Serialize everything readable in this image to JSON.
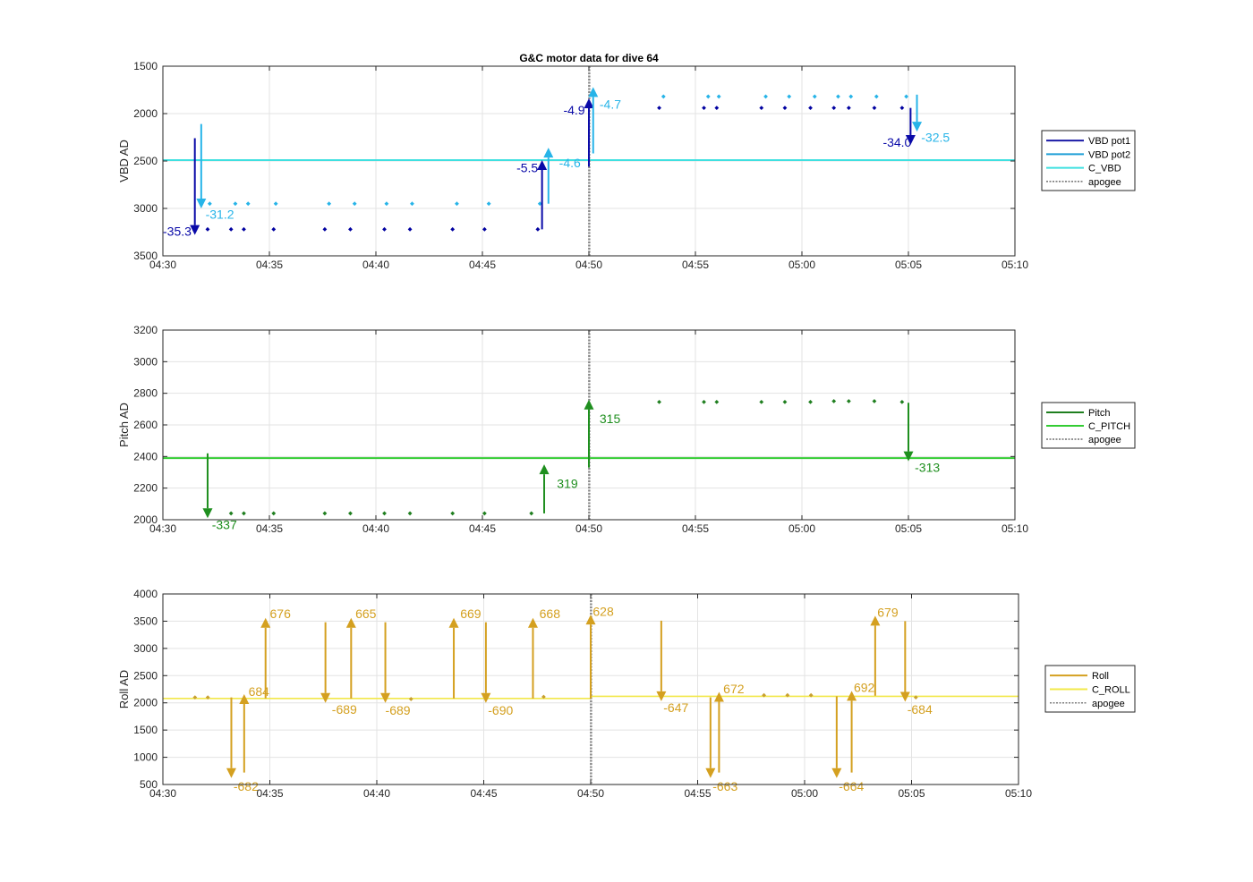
{
  "figure": {
    "title": "G&C motor data for dive 64"
  },
  "chart_data": [
    {
      "type": "scatter",
      "ylabel": "VBD AD",
      "y_reversed": true,
      "ylim": [
        1500,
        3500
      ],
      "yticks": [
        1500,
        2000,
        2500,
        3000,
        3500
      ],
      "ytick_labels": [
        "1500",
        "2000",
        "2500",
        "3000",
        "3500"
      ],
      "xlim_min": [
        270,
        310
      ],
      "xticks_min": [
        270,
        275,
        280,
        285,
        290,
        295,
        300,
        305,
        310
      ],
      "xtick_labels": [
        "04:30",
        "04:35",
        "04:40",
        "04:45",
        "04:50",
        "04:55",
        "05:00",
        "05:05",
        "05:10"
      ],
      "grid": true,
      "legend": {
        "placement": "right",
        "entries": [
          {
            "name": "VBD pot1",
            "color": "#1a1aa6",
            "style": "solid"
          },
          {
            "name": "VBD pot2",
            "color": "#1f9fd6",
            "style": "solid"
          },
          {
            "name": "C_VBD",
            "color": "#3fe0e0",
            "style": "solid"
          },
          {
            "name": "apogee",
            "color": "#555555",
            "style": "dashed"
          }
        ]
      },
      "hlines": [
        {
          "name": "C_VBD",
          "color": "#3fe0e0",
          "y": 2490
        }
      ],
      "apogee_x": 290,
      "points": [
        {
          "series": "VBD pot1",
          "color": "#0000a0",
          "x": [
            272.1,
            273.2,
            273.8,
            275.2,
            277.6,
            278.8,
            280.4,
            281.6,
            283.6,
            285.1,
            287.6,
            293.3,
            295.4,
            296.0,
            298.1,
            299.2,
            300.4,
            301.5,
            302.2,
            303.4,
            304.7
          ],
          "y": [
            3220,
            3220,
            3220,
            3220,
            3220,
            3220,
            3220,
            3220,
            3220,
            3220,
            3220,
            1940,
            1940,
            1940,
            1940,
            1940,
            1940,
            1940,
            1940,
            1940,
            1940
          ]
        },
        {
          "series": "VBD pot2",
          "color": "#27b4e8",
          "x": [
            272.2,
            273.4,
            274.0,
            275.3,
            277.8,
            279.0,
            280.5,
            281.7,
            283.8,
            285.3,
            287.7,
            293.5,
            295.6,
            296.1,
            298.3,
            299.4,
            300.6,
            301.7,
            302.3,
            303.5,
            304.9
          ],
          "y": [
            2950,
            2950,
            2950,
            2950,
            2950,
            2950,
            2950,
            2950,
            2950,
            2950,
            2950,
            1820,
            1820,
            1820,
            1820,
            1820,
            1820,
            1820,
            1820,
            1820,
            1820
          ]
        }
      ],
      "arrows": [
        {
          "color": "#0a0aa8",
          "x": 271.5,
          "y0": 2260,
          "y1": 3280,
          "label": "-35.3",
          "label_x": 270.0,
          "label_y": 3240
        },
        {
          "color": "#27b4e8",
          "x": 271.8,
          "y0": 2110,
          "y1": 3000,
          "label": "-31.2",
          "label_x": 272.0,
          "label_y": 3060
        },
        {
          "color": "#0a0aa8",
          "x": 287.8,
          "y0": 3220,
          "y1": 2490,
          "label": "-5.5",
          "label_x": 286.6,
          "label_y": 2570
        },
        {
          "color": "#27b4e8",
          "x": 288.1,
          "y0": 2950,
          "y1": 2360,
          "label": "-4.6",
          "label_x": 288.6,
          "label_y": 2520
        },
        {
          "color": "#0a0aa8",
          "x": 290.0,
          "y0": 2560,
          "y1": 1840,
          "label": "-4.9",
          "label_x": 288.8,
          "label_y": 1960
        },
        {
          "color": "#27b4e8",
          "x": 290.2,
          "y0": 2420,
          "y1": 1720,
          "label": "-4.7",
          "label_x": 290.5,
          "label_y": 1900
        },
        {
          "color": "#0a0aa8",
          "x": 305.1,
          "y0": 1940,
          "y1": 2330,
          "label": "-34.0",
          "label_x": 303.8,
          "label_y": 2300
        },
        {
          "color": "#27b4e8",
          "x": 305.4,
          "y0": 1800,
          "y1": 2190,
          "label": "-32.5",
          "label_x": 305.6,
          "label_y": 2250
        }
      ]
    },
    {
      "type": "scatter",
      "ylabel": "Pitch AD",
      "y_reversed": false,
      "ylim": [
        2000,
        3200
      ],
      "yticks": [
        2000,
        2200,
        2400,
        2600,
        2800,
        3000,
        3200
      ],
      "ytick_labels": [
        "2000",
        "2200",
        "2400",
        "2600",
        "2800",
        "3000",
        "3200"
      ],
      "xlim_min": [
        270,
        310
      ],
      "xticks_min": [
        270,
        275,
        280,
        285,
        290,
        295,
        300,
        305,
        310
      ],
      "xtick_labels": [
        "04:30",
        "04:35",
        "04:40",
        "04:45",
        "04:50",
        "04:55",
        "05:00",
        "05:05",
        "05:10"
      ],
      "grid": true,
      "legend": {
        "placement": "right",
        "entries": [
          {
            "name": "Pitch",
            "color": "#1f7f1f",
            "style": "solid"
          },
          {
            "name": "C_PITCH",
            "color": "#33cc33",
            "style": "solid"
          },
          {
            "name": "apogee",
            "color": "#555555",
            "style": "dashed"
          }
        ]
      },
      "hlines": [
        {
          "name": "C_PITCH",
          "color": "#33cc33",
          "y": 2390
        }
      ],
      "apogee_x": 290,
      "points": [
        {
          "series": "Pitch",
          "color": "#1f7f1f",
          "x": [
            273.2,
            273.8,
            275.2,
            277.6,
            278.8,
            280.4,
            281.6,
            283.6,
            285.1,
            287.3,
            293.3,
            295.4,
            296.0,
            298.1,
            299.2,
            300.4,
            301.5,
            302.2,
            303.4,
            304.7
          ],
          "y": [
            2040,
            2040,
            2040,
            2040,
            2040,
            2040,
            2040,
            2040,
            2040,
            2040,
            2745,
            2745,
            2745,
            2745,
            2745,
            2745,
            2750,
            2750,
            2750,
            2745
          ]
        }
      ],
      "arrows": [
        {
          "color": "#1f8f1f",
          "x": 272.1,
          "y0": 2420,
          "y1": 2010,
          "label": "-337",
          "label_x": 272.3,
          "label_y": 1970
        },
        {
          "color": "#1f8f1f",
          "x": 287.9,
          "y0": 2040,
          "y1": 2350,
          "label": "319",
          "label_x": 288.5,
          "label_y": 2230
        },
        {
          "color": "#1f8f1f",
          "x": 290.0,
          "y0": 2330,
          "y1": 2760,
          "label": "315",
          "label_x": 290.5,
          "label_y": 2640
        },
        {
          "color": "#1f8f1f",
          "x": 305.0,
          "y0": 2740,
          "y1": 2370,
          "label": "-313",
          "label_x": 305.3,
          "label_y": 2330
        }
      ]
    },
    {
      "type": "scatter",
      "ylabel": "Roll AD",
      "y_reversed": false,
      "ylim": [
        500,
        4000
      ],
      "yticks": [
        500,
        1000,
        1500,
        2000,
        2500,
        3000,
        3500,
        4000
      ],
      "ytick_labels": [
        "500",
        "1000",
        "1500",
        "2000",
        "2500",
        "3000",
        "3500",
        "4000"
      ],
      "xlim_min": [
        270,
        310
      ],
      "xticks_min": [
        270,
        275,
        280,
        285,
        290,
        295,
        300,
        305,
        310
      ],
      "xtick_labels": [
        "04:30",
        "04:35",
        "04:40",
        "04:45",
        "04:50",
        "04:55",
        "05:00",
        "05:05",
        "05:10"
      ],
      "grid": true,
      "legend": {
        "placement": "right",
        "entries": [
          {
            "name": "Roll",
            "color": "#d4a020",
            "style": "solid"
          },
          {
            "name": "C_ROLL",
            "color": "#f2e84a",
            "style": "solid"
          },
          {
            "name": "apogee",
            "color": "#555555",
            "style": "dashed"
          }
        ]
      },
      "hlines": [
        {
          "name": "C_ROLL",
          "color": "#f2e84a",
          "y": [
            2080,
            2120
          ]
        }
      ],
      "apogee_x": 290,
      "points": [
        {
          "series": "Roll",
          "color": "#c8a030",
          "x": [
            271.5,
            272.1,
            281.6,
            287.8,
            298.1,
            299.2,
            300.3,
            305.2
          ],
          "y": [
            2100,
            2100,
            2070,
            2110,
            2140,
            2140,
            2140,
            2100
          ]
        }
      ],
      "arrows": [
        {
          "color": "#d4a020",
          "x": 273.2,
          "y0": 2100,
          "y1": 620,
          "label": "-682",
          "label_x": 273.3,
          "label_y": 470
        },
        {
          "color": "#d4a020",
          "x": 273.8,
          "y0": 720,
          "y1": 2160,
          "label": "684",
          "label_x": 274.0,
          "label_y": 2210
        },
        {
          "color": "#d4a020",
          "x": 274.8,
          "y0": 2080,
          "y1": 3560,
          "label": "676",
          "label_x": 275.0,
          "label_y": 3640
        },
        {
          "color": "#d4a020",
          "x": 277.6,
          "y0": 3480,
          "y1": 2000,
          "label": "-689",
          "label_x": 277.9,
          "label_y": 1880
        },
        {
          "color": "#d4a020",
          "x": 278.8,
          "y0": 2080,
          "y1": 3560,
          "label": "665",
          "label_x": 279.0,
          "label_y": 3640
        },
        {
          "color": "#d4a020",
          "x": 280.4,
          "y0": 3480,
          "y1": 2000,
          "label": "-689",
          "label_x": 280.4,
          "label_y": 1860
        },
        {
          "color": "#d4a020",
          "x": 283.6,
          "y0": 2080,
          "y1": 3560,
          "label": "669",
          "label_x": 283.9,
          "label_y": 3640
        },
        {
          "color": "#d4a020",
          "x": 285.1,
          "y0": 3480,
          "y1": 2000,
          "label": "-690",
          "label_x": 285.2,
          "label_y": 1860
        },
        {
          "color": "#d4a020",
          "x": 287.3,
          "y0": 2080,
          "y1": 3560,
          "label": "668",
          "label_x": 287.6,
          "label_y": 3640
        },
        {
          "color": "#d4a020",
          "x": 290.0,
          "y0": 2080,
          "y1": 3620,
          "label": "628",
          "label_x": 290.1,
          "label_y": 3680
        },
        {
          "color": "#d4a020",
          "x": 293.3,
          "y0": 3510,
          "y1": 2030,
          "label": "-647",
          "label_x": 293.4,
          "label_y": 1910
        },
        {
          "color": "#d4a020",
          "x": 295.6,
          "y0": 2100,
          "y1": 620,
          "label": "-663",
          "label_x": 295.7,
          "label_y": 470
        },
        {
          "color": "#d4a020",
          "x": 296.0,
          "y0": 720,
          "y1": 2200,
          "label": "672",
          "label_x": 296.2,
          "label_y": 2260
        },
        {
          "color": "#d4a020",
          "x": 301.5,
          "y0": 2120,
          "y1": 620,
          "label": "-664",
          "label_x": 301.6,
          "label_y": 470
        },
        {
          "color": "#d4a020",
          "x": 302.2,
          "y0": 720,
          "y1": 2220,
          "label": "692",
          "label_x": 302.3,
          "label_y": 2280
        },
        {
          "color": "#d4a020",
          "x": 303.3,
          "y0": 2130,
          "y1": 3600,
          "label": "679",
          "label_x": 303.4,
          "label_y": 3660
        },
        {
          "color": "#d4a020",
          "x": 304.7,
          "y0": 3500,
          "y1": 2020,
          "label": "-684",
          "label_x": 304.8,
          "label_y": 1880
        }
      ]
    }
  ]
}
